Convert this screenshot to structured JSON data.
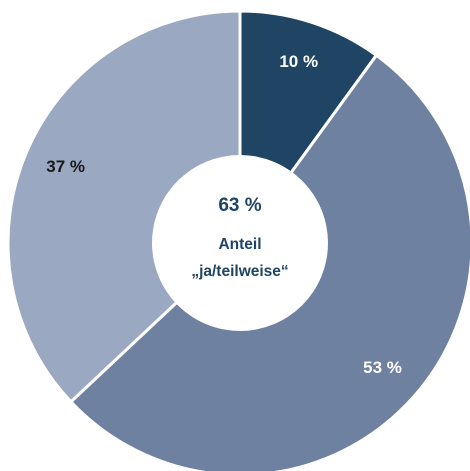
{
  "chart_data": {
    "type": "pie",
    "categories": [
      "",
      "",
      ""
    ],
    "values": [
      10,
      53,
      37
    ],
    "data_labels": [
      "10 %",
      "53 %",
      "37 %"
    ],
    "colors": [
      "#1f4464",
      "#6e81a0",
      "#9aa8c2"
    ],
    "label_colors": [
      "#ffffff",
      "#ffffff",
      "#1a1a1a"
    ],
    "center": {
      "value": "63 %",
      "line1": "Anteil",
      "line2": "„ja/teilweise“",
      "color": "#1f4464"
    }
  }
}
